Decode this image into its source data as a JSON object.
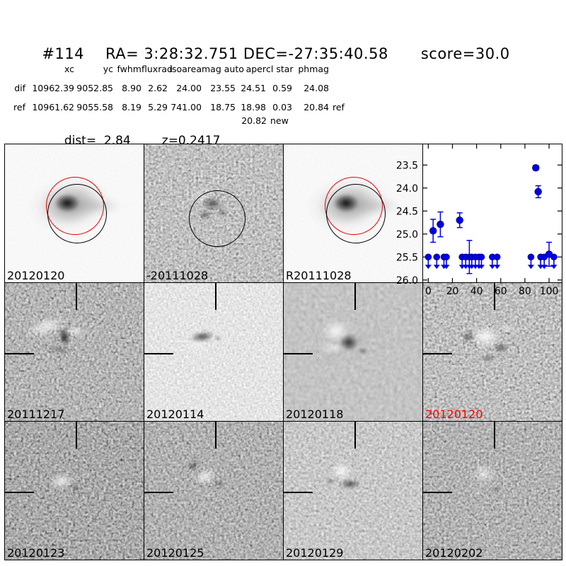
{
  "header": {
    "candidate_id": "#114",
    "ra": "RA= 3:28:32.751",
    "dec": "DEC=-27:35:40.58",
    "score": "score=30.0"
  },
  "photometry_table": {
    "columns": [
      "xc",
      "yc",
      "fwhm",
      "fluxrad",
      "isoarea",
      "mag auto",
      "aper",
      "cl star",
      "phmag"
    ],
    "rows": [
      {
        "name": "dif",
        "values": [
          "10962.39",
          "9052.85",
          "8.90",
          "2.62",
          "24.00",
          "23.55",
          "24.51",
          "0.59",
          "24.08"
        ],
        "suffix": ""
      },
      {
        "name": "ref",
        "values": [
          "10961.62",
          "9055.58",
          "8.19",
          "5.29",
          "741.00",
          "18.75",
          "18.98",
          "0.03",
          "20.84"
        ],
        "suffix": "ref"
      }
    ],
    "extra_phmag": {
      "value": "20.82",
      "suffix": "new"
    }
  },
  "info_line": {
    "dist": "dist=  2.84",
    "z": "z=0.2417"
  },
  "panels": [
    {
      "label": "20120120",
      "label_color": "#000000",
      "kind": "new-image-with-apertures"
    },
    {
      "label": "-20111028",
      "label_color": "#000000",
      "kind": "difference-image-with-aperture"
    },
    {
      "label": "R20111028",
      "label_color": "#000000",
      "kind": "reference-image-with-apertures"
    },
    {
      "label": "20111217",
      "label_color": "#000000",
      "kind": "difference-stamp"
    },
    {
      "label": "20120114",
      "label_color": "#000000",
      "kind": "difference-stamp"
    },
    {
      "label": "20120118",
      "label_color": "#000000",
      "kind": "difference-stamp"
    },
    {
      "label": "20120120",
      "label_color": "#ff0000",
      "kind": "difference-stamp-current"
    },
    {
      "label": "20120123",
      "label_color": "#000000",
      "kind": "difference-stamp"
    },
    {
      "label": "20120125",
      "label_color": "#000000",
      "kind": "difference-stamp"
    },
    {
      "label": "20120129",
      "label_color": "#000000",
      "kind": "difference-stamp"
    },
    {
      "label": "20120202",
      "label_color": "#000000",
      "kind": "difference-stamp"
    }
  ],
  "aperture_colors": {
    "photometry_aperture": "#e60000",
    "detection_aperture": "#000000"
  },
  "chart_data": {
    "type": "scatter",
    "title": "",
    "xlabel": "",
    "ylabel": "",
    "legend": null,
    "grid": false,
    "y_inverted": true,
    "xlim": [
      -4.3,
      110.5
    ],
    "ylim_top": 23.05,
    "ylim_bottom": 26.05,
    "x_ticks": [
      0,
      20,
      40,
      60,
      80,
      100
    ],
    "y_ticks": [
      23.5,
      24.0,
      24.5,
      25.0,
      25.5,
      26.0
    ],
    "marker_color": "#0000ee",
    "marker_edge_color": "#000066",
    "series": [
      {
        "name": "detections",
        "points": [
          {
            "x": 4,
            "mag": 24.93,
            "err": 0.25
          },
          {
            "x": 10,
            "mag": 24.79,
            "err": 0.27
          },
          {
            "x": 26,
            "mag": 24.7,
            "err": 0.16
          },
          {
            "x": 89,
            "mag": 23.56,
            "err": 0.05
          },
          {
            "x": 91,
            "mag": 24.08,
            "err": 0.13
          },
          {
            "x": 100,
            "mag": 25.44,
            "err": 0.26
          }
        ]
      },
      {
        "name": "upper-limits",
        "limit_mag": 25.5,
        "points": [
          {
            "x": 0,
            "mag": 25.5
          },
          {
            "x": 7,
            "mag": 25.5
          },
          {
            "x": 13,
            "mag": 25.5
          },
          {
            "x": 15,
            "mag": 25.5
          },
          {
            "x": 28,
            "mag": 25.5
          },
          {
            "x": 31,
            "mag": 25.5
          },
          {
            "x": 34,
            "mag": 25.5,
            "err": 0.36
          },
          {
            "x": 36,
            "mag": 25.5
          },
          {
            "x": 39,
            "mag": 25.5
          },
          {
            "x": 42,
            "mag": 25.5
          },
          {
            "x": 44,
            "mag": 25.5
          },
          {
            "x": 53,
            "mag": 25.5
          },
          {
            "x": 57,
            "mag": 25.5
          },
          {
            "x": 85,
            "mag": 25.5
          },
          {
            "x": 93,
            "mag": 25.5
          },
          {
            "x": 96,
            "mag": 25.5
          },
          {
            "x": 104,
            "mag": 25.5
          }
        ]
      }
    ]
  }
}
